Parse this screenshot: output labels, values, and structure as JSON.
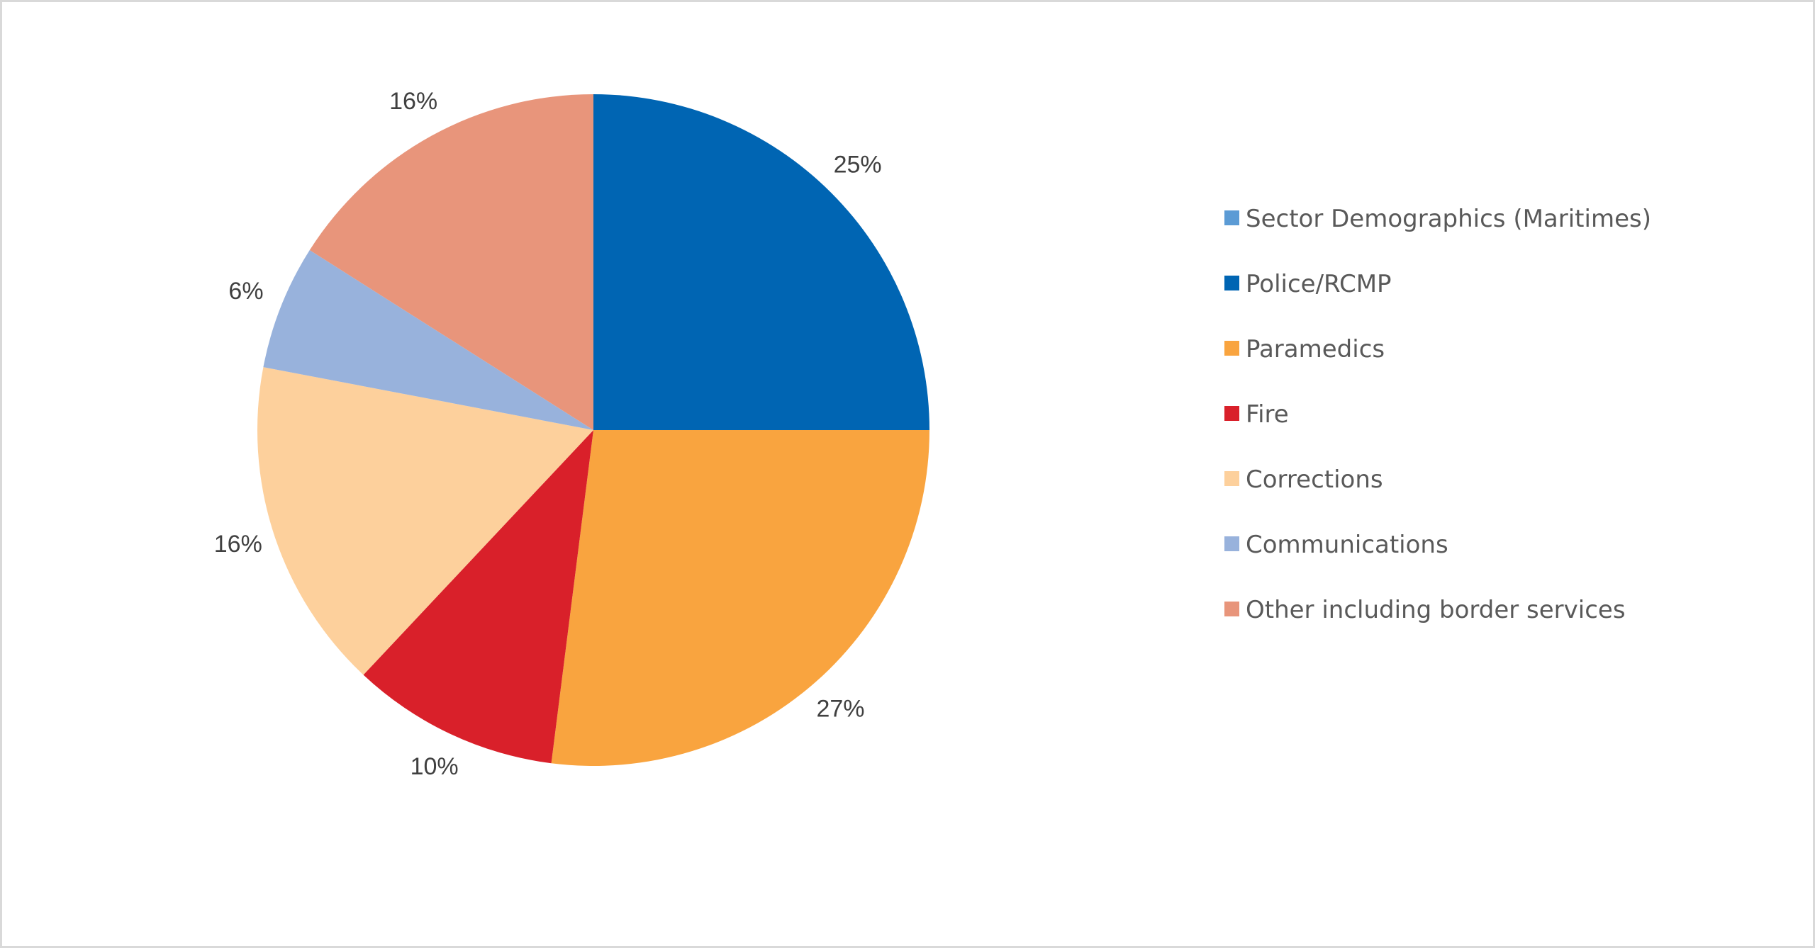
{
  "chart_data": {
    "type": "pie",
    "title": "",
    "legend_title": "Sector Demographics (Maritimes)",
    "legend_title_color": "#5b9bd5",
    "legend_position": "right",
    "slices": [
      {
        "name": "Police/RCMP",
        "value": 25,
        "label": "25%",
        "color": "#0065b3"
      },
      {
        "name": "Paramedics",
        "value": 27,
        "label": "27%",
        "color": "#f9a43f"
      },
      {
        "name": "Fire",
        "value": 10,
        "label": "10%",
        "color": "#d9202a"
      },
      {
        "name": "Corrections",
        "value": 16,
        "label": "16%",
        "color": "#fdd09c"
      },
      {
        "name": "Communications",
        "value": 6,
        "label": "6%",
        "color": "#98b2dc"
      },
      {
        "name": "Other including border services",
        "value": 16,
        "label": "16%",
        "color": "#e8957b"
      }
    ]
  }
}
